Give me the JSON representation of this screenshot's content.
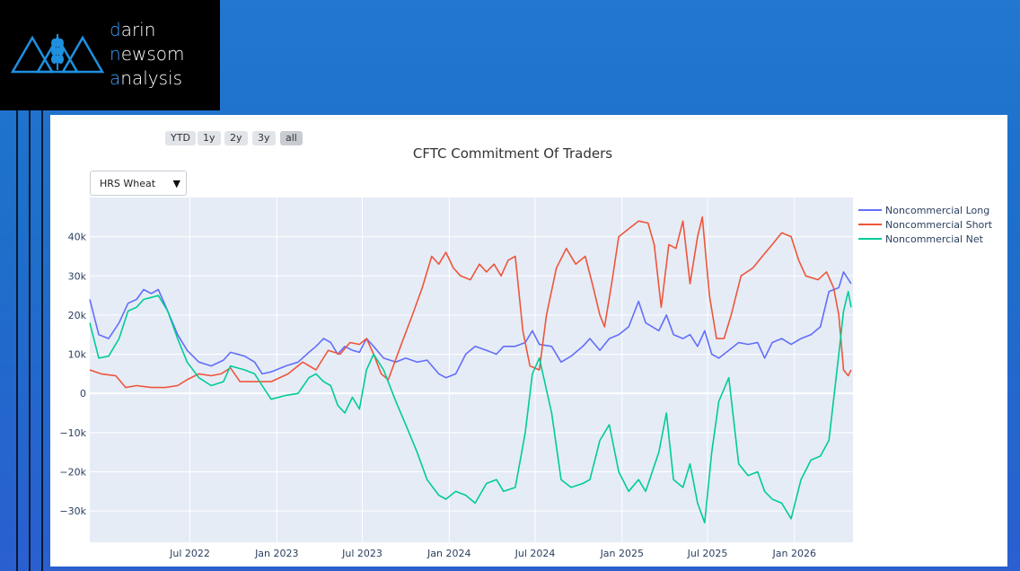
{
  "brand": {
    "line1_first": "d",
    "line1_rest": "arin",
    "line2_first": "n",
    "line2_rest": "ewsom",
    "line3_first": "a",
    "line3_rest": "nalysis"
  },
  "range_buttons": [
    "YTD",
    "1y",
    "2y",
    "3y",
    "all"
  ],
  "range_active": "all",
  "dropdown": {
    "selected": "HRS Wheat"
  },
  "colors": {
    "long": "#636efa",
    "short": "#ef553b",
    "net": "#00cc96",
    "plot_bg": "#e5ecf6"
  },
  "chart_data": {
    "type": "line",
    "title": "CFTC Commitment Of Traders",
    "xlabel": "",
    "ylabel": "",
    "x_range": [
      "2021-12-01",
      "2026-05-05"
    ],
    "ylim": [
      -38000,
      50000
    ],
    "y_ticks": [
      40000,
      30000,
      20000,
      10000,
      0,
      -10000,
      -20000,
      -30000
    ],
    "y_tick_labels": [
      "40k",
      "30k",
      "20k",
      "10k",
      "0",
      "−10k",
      "−20k",
      "−30k"
    ],
    "x_ticks": [
      "2022-07-01",
      "2023-01-01",
      "2023-07-01",
      "2024-01-01",
      "2024-07-01",
      "2025-01-01",
      "2025-07-01",
      "2026-01-01"
    ],
    "x_tick_labels": [
      "Jul 2022",
      "Jan 2023",
      "Jul 2023",
      "Jan 2024",
      "Jul 2024",
      "Jan 2025",
      "Jul 2025",
      "Jan 2026"
    ],
    "grid": true,
    "legend_position": "top-right",
    "series": [
      {
        "name": "Noncommercial Long",
        "points": [
          [
            "2021-12-01",
            24000
          ],
          [
            "2021-12-20",
            15000
          ],
          [
            "2022-01-10",
            14000
          ],
          [
            "2022-02-01",
            18000
          ],
          [
            "2022-02-20",
            23000
          ],
          [
            "2022-03-10",
            24000
          ],
          [
            "2022-03-25",
            26500
          ],
          [
            "2022-04-10",
            25500
          ],
          [
            "2022-04-25",
            26500
          ],
          [
            "2022-05-15",
            21000
          ],
          [
            "2022-06-05",
            15000
          ],
          [
            "2022-06-25",
            11000
          ],
          [
            "2022-07-20",
            8000
          ],
          [
            "2022-08-15",
            7000
          ],
          [
            "2022-09-10",
            8500
          ],
          [
            "2022-09-25",
            10500
          ],
          [
            "2022-10-25",
            9500
          ],
          [
            "2022-11-15",
            8000
          ],
          [
            "2022-12-01",
            5000
          ],
          [
            "2022-12-20",
            5500
          ],
          [
            "2023-01-20",
            7000
          ],
          [
            "2023-02-15",
            8000
          ],
          [
            "2023-03-10",
            10500
          ],
          [
            "2023-03-25",
            12000
          ],
          [
            "2023-04-10",
            14000
          ],
          [
            "2023-04-25",
            13000
          ],
          [
            "2023-05-10",
            10000
          ],
          [
            "2023-05-25",
            12000
          ],
          [
            "2023-06-10",
            11000
          ],
          [
            "2023-06-25",
            10500
          ],
          [
            "2023-07-10",
            14000
          ],
          [
            "2023-07-25",
            12000
          ],
          [
            "2023-08-15",
            9000
          ],
          [
            "2023-09-10",
            8000
          ],
          [
            "2023-10-01",
            9000
          ],
          [
            "2023-10-25",
            8000
          ],
          [
            "2023-11-15",
            8500
          ],
          [
            "2023-12-10",
            5000
          ],
          [
            "2023-12-25",
            4000
          ],
          [
            "2024-01-15",
            5000
          ],
          [
            "2024-02-05",
            10000
          ],
          [
            "2024-02-25",
            12000
          ],
          [
            "2024-03-20",
            11000
          ],
          [
            "2024-04-10",
            10000
          ],
          [
            "2024-04-25",
            12000
          ],
          [
            "2024-05-20",
            12000
          ],
          [
            "2024-06-10",
            13000
          ],
          [
            "2024-06-25",
            16000
          ],
          [
            "2024-07-10",
            12500
          ],
          [
            "2024-08-05",
            12000
          ],
          [
            "2024-08-25",
            8000
          ],
          [
            "2024-09-15",
            9500
          ],
          [
            "2024-10-10",
            12000
          ],
          [
            "2024-10-25",
            14000
          ],
          [
            "2024-11-15",
            11000
          ],
          [
            "2024-12-05",
            14000
          ],
          [
            "2024-12-25",
            15000
          ],
          [
            "2025-01-15",
            17000
          ],
          [
            "2025-02-05",
            23500
          ],
          [
            "2025-02-20",
            18000
          ],
          [
            "2025-03-20",
            16000
          ],
          [
            "2025-04-05",
            20000
          ],
          [
            "2025-04-20",
            15000
          ],
          [
            "2025-05-10",
            14000
          ],
          [
            "2025-05-25",
            15000
          ],
          [
            "2025-06-10",
            12000
          ],
          [
            "2025-06-25",
            16000
          ],
          [
            "2025-07-10",
            10000
          ],
          [
            "2025-07-25",
            9000
          ],
          [
            "2025-08-15",
            11000
          ],
          [
            "2025-09-05",
            13000
          ],
          [
            "2025-09-25",
            12500
          ],
          [
            "2025-10-15",
            13000
          ],
          [
            "2025-10-30",
            9000
          ],
          [
            "2025-11-15",
            13000
          ],
          [
            "2025-12-05",
            14000
          ],
          [
            "2025-12-25",
            12500
          ],
          [
            "2026-01-15",
            14000
          ],
          [
            "2026-02-05",
            15000
          ],
          [
            "2026-02-25",
            17000
          ],
          [
            "2026-03-15",
            26000
          ],
          [
            "2026-04-05",
            27000
          ],
          [
            "2026-04-15",
            31000
          ],
          [
            "2026-05-01",
            28000
          ]
        ]
      },
      {
        "name": "Noncommercial Short",
        "points": [
          [
            "2021-12-01",
            6000
          ],
          [
            "2021-12-25",
            5000
          ],
          [
            "2022-01-25",
            4500
          ],
          [
            "2022-02-15",
            1500
          ],
          [
            "2022-03-10",
            2000
          ],
          [
            "2022-04-10",
            1500
          ],
          [
            "2022-05-10",
            1500
          ],
          [
            "2022-06-05",
            2000
          ],
          [
            "2022-06-25",
            3500
          ],
          [
            "2022-07-20",
            5000
          ],
          [
            "2022-08-15",
            4500
          ],
          [
            "2022-09-05",
            5000
          ],
          [
            "2022-09-25",
            6500
          ],
          [
            "2022-10-15",
            3000
          ],
          [
            "2022-11-15",
            3000
          ],
          [
            "2022-12-20",
            3000
          ],
          [
            "2023-01-25",
            5000
          ],
          [
            "2023-02-25",
            8000
          ],
          [
            "2023-03-25",
            6000
          ],
          [
            "2023-04-20",
            11000
          ],
          [
            "2023-05-15",
            10000
          ],
          [
            "2023-06-05",
            13000
          ],
          [
            "2023-06-25",
            12500
          ],
          [
            "2023-07-10",
            14000
          ],
          [
            "2023-07-25",
            10000
          ],
          [
            "2023-08-10",
            5000
          ],
          [
            "2023-08-25",
            3500
          ],
          [
            "2023-09-20",
            12000
          ],
          [
            "2023-10-15",
            20000
          ],
          [
            "2023-11-05",
            27000
          ],
          [
            "2023-11-25",
            35000
          ],
          [
            "2023-12-10",
            33000
          ],
          [
            "2023-12-25",
            36000
          ],
          [
            "2024-01-10",
            32000
          ],
          [
            "2024-01-25",
            30000
          ],
          [
            "2024-02-15",
            29000
          ],
          [
            "2024-03-05",
            33000
          ],
          [
            "2024-03-20",
            31000
          ],
          [
            "2024-04-05",
            33000
          ],
          [
            "2024-04-20",
            30000
          ],
          [
            "2024-05-05",
            34000
          ],
          [
            "2024-05-20",
            35000
          ],
          [
            "2024-06-05",
            16000
          ],
          [
            "2024-06-20",
            7000
          ],
          [
            "2024-07-10",
            6000
          ],
          [
            "2024-07-25",
            20000
          ],
          [
            "2024-08-15",
            32000
          ],
          [
            "2024-09-05",
            37000
          ],
          [
            "2024-09-25",
            33000
          ],
          [
            "2024-10-15",
            35000
          ],
          [
            "2024-10-30",
            28000
          ],
          [
            "2024-11-15",
            20000
          ],
          [
            "2024-11-25",
            17000
          ],
          [
            "2024-12-10",
            28000
          ],
          [
            "2024-12-25",
            40000
          ],
          [
            "2025-01-15",
            42000
          ],
          [
            "2025-02-05",
            44000
          ],
          [
            "2025-02-25",
            43500
          ],
          [
            "2025-03-10",
            38000
          ],
          [
            "2025-03-25",
            22000
          ],
          [
            "2025-04-10",
            38000
          ],
          [
            "2025-04-25",
            37000
          ],
          [
            "2025-05-10",
            44000
          ],
          [
            "2025-05-25",
            28000
          ],
          [
            "2025-06-10",
            40000
          ],
          [
            "2025-06-20",
            45000
          ],
          [
            "2025-07-05",
            25000
          ],
          [
            "2025-07-20",
            14000
          ],
          [
            "2025-08-05",
            14000
          ],
          [
            "2025-08-20",
            20000
          ],
          [
            "2025-09-10",
            30000
          ],
          [
            "2025-10-05",
            32000
          ],
          [
            "2025-10-25",
            35000
          ],
          [
            "2025-11-15",
            38000
          ],
          [
            "2025-12-05",
            41000
          ],
          [
            "2025-12-25",
            40000
          ],
          [
            "2026-01-10",
            34000
          ],
          [
            "2026-01-25",
            30000
          ],
          [
            "2026-02-20",
            29000
          ],
          [
            "2026-03-10",
            31000
          ],
          [
            "2026-03-25",
            27000
          ],
          [
            "2026-04-05",
            20000
          ],
          [
            "2026-04-15",
            6000
          ],
          [
            "2026-04-25",
            4500
          ],
          [
            "2026-05-01",
            6000
          ]
        ]
      },
      {
        "name": "Noncommercial Net",
        "points": [
          [
            "2021-12-01",
            18000
          ],
          [
            "2021-12-20",
            9000
          ],
          [
            "2022-01-10",
            9500
          ],
          [
            "2022-02-01",
            14000
          ],
          [
            "2022-02-20",
            21000
          ],
          [
            "2022-03-10",
            22000
          ],
          [
            "2022-03-25",
            24000
          ],
          [
            "2022-04-10",
            24500
          ],
          [
            "2022-04-25",
            25000
          ],
          [
            "2022-05-15",
            21000
          ],
          [
            "2022-06-05",
            14000
          ],
          [
            "2022-06-25",
            8000
          ],
          [
            "2022-07-20",
            4000
          ],
          [
            "2022-08-15",
            2000
          ],
          [
            "2022-09-10",
            3000
          ],
          [
            "2022-09-25",
            7000
          ],
          [
            "2022-10-25",
            6000
          ],
          [
            "2022-11-15",
            5000
          ],
          [
            "2022-12-01",
            2000
          ],
          [
            "2022-12-20",
            -1500
          ],
          [
            "2023-01-20",
            -500
          ],
          [
            "2023-02-15",
            0
          ],
          [
            "2023-03-10",
            4000
          ],
          [
            "2023-03-25",
            5000
          ],
          [
            "2023-04-10",
            3000
          ],
          [
            "2023-04-25",
            2000
          ],
          [
            "2023-05-10",
            -3000
          ],
          [
            "2023-05-25",
            -5000
          ],
          [
            "2023-06-10",
            -1000
          ],
          [
            "2023-06-25",
            -4000
          ],
          [
            "2023-07-10",
            6000
          ],
          [
            "2023-07-25",
            10000
          ],
          [
            "2023-08-15",
            6000
          ],
          [
            "2023-09-10",
            -2000
          ],
          [
            "2023-10-01",
            -8000
          ],
          [
            "2023-10-25",
            -15000
          ],
          [
            "2023-11-15",
            -22000
          ],
          [
            "2023-12-10",
            -26000
          ],
          [
            "2023-12-25",
            -27000
          ],
          [
            "2024-01-15",
            -25000
          ],
          [
            "2024-02-05",
            -26000
          ],
          [
            "2024-02-25",
            -28000
          ],
          [
            "2024-03-20",
            -23000
          ],
          [
            "2024-04-10",
            -22000
          ],
          [
            "2024-04-25",
            -25000
          ],
          [
            "2024-05-20",
            -24000
          ],
          [
            "2024-06-10",
            -10000
          ],
          [
            "2024-06-25",
            5000
          ],
          [
            "2024-07-10",
            9000
          ],
          [
            "2024-08-05",
            -5000
          ],
          [
            "2024-08-25",
            -22000
          ],
          [
            "2024-09-15",
            -24000
          ],
          [
            "2024-10-10",
            -23000
          ],
          [
            "2024-10-25",
            -22000
          ],
          [
            "2024-11-15",
            -12000
          ],
          [
            "2024-12-05",
            -8000
          ],
          [
            "2024-12-25",
            -20000
          ],
          [
            "2025-01-15",
            -25000
          ],
          [
            "2025-02-05",
            -22000
          ],
          [
            "2025-02-20",
            -25000
          ],
          [
            "2025-03-20",
            -15000
          ],
          [
            "2025-04-05",
            -5000
          ],
          [
            "2025-04-20",
            -22000
          ],
          [
            "2025-05-10",
            -24000
          ],
          [
            "2025-05-25",
            -18000
          ],
          [
            "2025-06-10",
            -28000
          ],
          [
            "2025-06-25",
            -33000
          ],
          [
            "2025-07-10",
            -15000
          ],
          [
            "2025-07-25",
            -2000
          ],
          [
            "2025-08-15",
            4000
          ],
          [
            "2025-09-05",
            -18000
          ],
          [
            "2025-09-25",
            -21000
          ],
          [
            "2025-10-15",
            -20000
          ],
          [
            "2025-10-30",
            -25000
          ],
          [
            "2025-11-15",
            -27000
          ],
          [
            "2025-12-05",
            -28000
          ],
          [
            "2025-12-25",
            -32000
          ],
          [
            "2026-01-15",
            -22000
          ],
          [
            "2026-02-05",
            -17000
          ],
          [
            "2026-02-25",
            -16000
          ],
          [
            "2026-03-15",
            -12000
          ],
          [
            "2026-04-05",
            10000
          ],
          [
            "2026-04-15",
            21000
          ],
          [
            "2026-04-25",
            26000
          ],
          [
            "2026-05-01",
            22000
          ]
        ]
      }
    ]
  }
}
